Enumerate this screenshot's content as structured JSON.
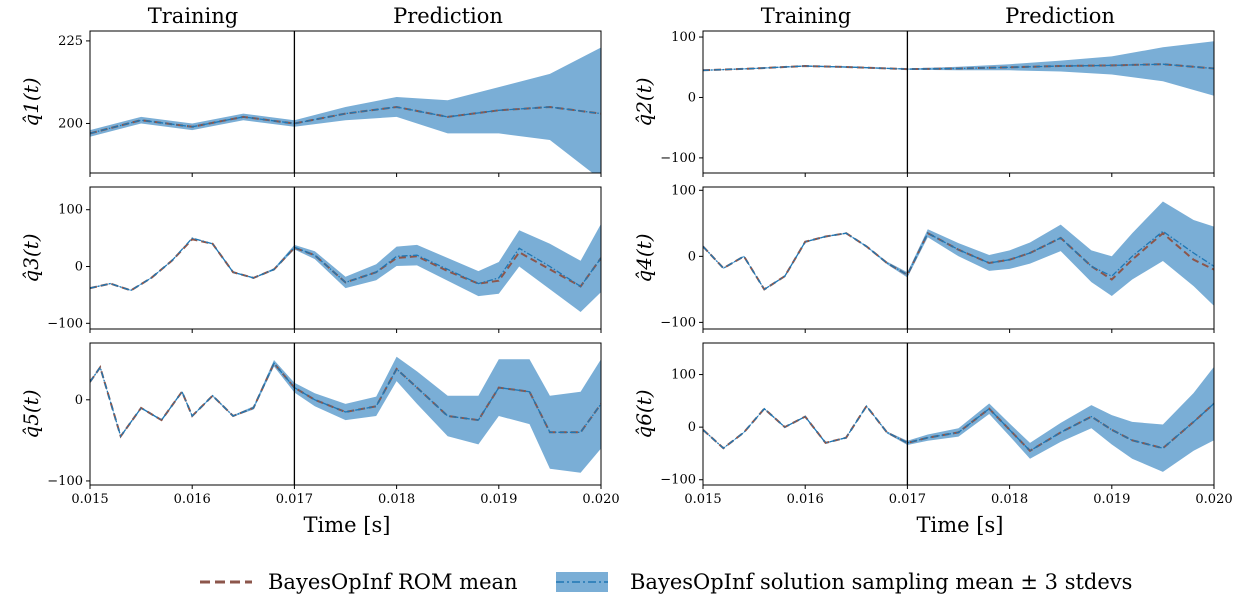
{
  "figure": {
    "column_headers": {
      "training": "Training",
      "prediction": "Prediction"
    },
    "xlabel": "Time [s]",
    "x_ticks": [
      "0.015",
      "0.016",
      "0.017",
      "0.018",
      "0.019",
      "0.020"
    ],
    "train_end": 0.017,
    "xlim": [
      0.015,
      0.02
    ]
  },
  "legend": {
    "position": "bottom-center",
    "rom_mean": "BayesOpInf ROM mean",
    "sampling": "BayesOpInf solution sampling mean ± 3 stdevs"
  },
  "colors": {
    "rom_mean": "#8c564b",
    "sampling_mean": "#1f77b4",
    "band": "#7aaed6",
    "divider": "#000000"
  },
  "chart_data": [
    {
      "type": "line",
      "ylabel": "q̂1(t)",
      "ylim": [
        185,
        228
      ],
      "yticks": [
        200,
        225
      ],
      "x": [
        0.015,
        0.0155,
        0.016,
        0.0165,
        0.017,
        0.0175,
        0.018,
        0.0185,
        0.019,
        0.0195,
        0.02
      ],
      "series": [
        {
          "name": "BayesOpInf ROM mean",
          "values": [
            197,
            201,
            199,
            202,
            200,
            203,
            205,
            202,
            204,
            205,
            203
          ]
        },
        {
          "name": "BayesOpInf solution sampling mean ± 3 stdevs",
          "values": [
            197,
            201,
            199,
            202,
            200,
            203,
            205,
            202,
            204,
            205,
            203
          ],
          "band": [
            1,
            1,
            1,
            1,
            1,
            2,
            3,
            5,
            7,
            10,
            20
          ]
        }
      ]
    },
    {
      "type": "line",
      "ylabel": "q̂2(t)",
      "ylim": [
        -125,
        110
      ],
      "yticks": [
        -100,
        0,
        100
      ],
      "x": [
        0.015,
        0.0155,
        0.016,
        0.0165,
        0.017,
        0.0175,
        0.018,
        0.0185,
        0.019,
        0.0195,
        0.02
      ],
      "series": [
        {
          "name": "BayesOpInf ROM mean",
          "values": [
            45,
            48,
            52,
            50,
            47,
            48,
            50,
            52,
            53,
            55,
            48
          ]
        },
        {
          "name": "BayesOpInf solution sampling mean ± 3 stdevs",
          "values": [
            45,
            48,
            52,
            50,
            47,
            48,
            50,
            52,
            53,
            55,
            48
          ],
          "band": [
            1,
            1,
            1,
            1,
            1,
            3,
            5,
            9,
            15,
            28,
            45
          ]
        }
      ]
    },
    {
      "type": "line",
      "ylabel": "q̂3(t)",
      "ylim": [
        -110,
        140
      ],
      "yticks": [
        -100,
        0,
        100
      ],
      "x": [
        0.015,
        0.0152,
        0.0154,
        0.0156,
        0.0158,
        0.016,
        0.0162,
        0.0164,
        0.0166,
        0.0168,
        0.017,
        0.0172,
        0.0175,
        0.0178,
        0.018,
        0.0182,
        0.0185,
        0.0188,
        0.019,
        0.0192,
        0.0195,
        0.0198,
        0.02
      ],
      "series": [
        {
          "name": "BayesOpInf ROM mean",
          "values": [
            -38,
            -30,
            -42,
            -20,
            10,
            48,
            40,
            -10,
            -20,
            -5,
            33,
            20,
            -28,
            -10,
            15,
            18,
            -8,
            -30,
            -25,
            25,
            -5,
            -35,
            15
          ]
        },
        {
          "name": "BayesOpInf solution sampling mean ± 3 stdevs",
          "values": [
            -38,
            -30,
            -42,
            -20,
            10,
            50,
            40,
            -10,
            -20,
            -5,
            34,
            20,
            -28,
            -10,
            18,
            20,
            -5,
            -30,
            -20,
            32,
            0,
            -35,
            15
          ],
          "band": [
            1,
            1,
            1,
            1,
            1,
            1,
            1,
            1,
            1,
            2,
            4,
            7,
            10,
            14,
            17,
            18,
            20,
            22,
            28,
            32,
            40,
            45,
            60
          ]
        }
      ]
    },
    {
      "type": "line",
      "ylabel": "q̂4(t)",
      "ylim": [
        -110,
        105
      ],
      "yticks": [
        -100,
        0,
        100
      ],
      "x": [
        0.015,
        0.0152,
        0.0154,
        0.0156,
        0.0158,
        0.016,
        0.0162,
        0.0164,
        0.0166,
        0.0168,
        0.017,
        0.0172,
        0.0175,
        0.0178,
        0.018,
        0.0182,
        0.0185,
        0.0188,
        0.019,
        0.0192,
        0.0195,
        0.0198,
        0.02
      ],
      "series": [
        {
          "name": "BayesOpInf ROM mean",
          "values": [
            15,
            -18,
            0,
            -50,
            -30,
            22,
            30,
            35,
            15,
            -10,
            -28,
            35,
            10,
            -10,
            -5,
            5,
            28,
            -15,
            -35,
            -5,
            35,
            -5,
            -20
          ]
        },
        {
          "name": "BayesOpInf solution sampling mean ± 3 stdevs",
          "values": [
            15,
            -18,
            0,
            -50,
            -30,
            22,
            30,
            35,
            15,
            -10,
            -28,
            35,
            10,
            -10,
            -5,
            5,
            28,
            -15,
            -30,
            0,
            38,
            5,
            -15
          ],
          "band": [
            1,
            1,
            1,
            1,
            1,
            1,
            1,
            1,
            1,
            2,
            4,
            6,
            10,
            12,
            14,
            16,
            20,
            24,
            30,
            35,
            45,
            50,
            60
          ]
        }
      ]
    },
    {
      "type": "line",
      "ylabel": "q̂5(t)",
      "ylim": [
        -105,
        70
      ],
      "yticks": [
        -100,
        0
      ],
      "x": [
        0.015,
        0.0151,
        0.0153,
        0.0155,
        0.0157,
        0.0159,
        0.016,
        0.0162,
        0.0164,
        0.0166,
        0.0168,
        0.017,
        0.0172,
        0.0175,
        0.0178,
        0.018,
        0.0182,
        0.0185,
        0.0188,
        0.019,
        0.0193,
        0.0195,
        0.0198,
        0.02
      ],
      "series": [
        {
          "name": "BayesOpInf ROM mean",
          "values": [
            22,
            40,
            -45,
            -10,
            -25,
            10,
            -20,
            5,
            -20,
            -10,
            45,
            15,
            0,
            -15,
            -8,
            38,
            15,
            -20,
            -25,
            15,
            10,
            -40,
            -40,
            -5
          ]
        },
        {
          "name": "BayesOpInf solution sampling mean ± 3 stdevs",
          "values": [
            22,
            40,
            -45,
            -10,
            -25,
            10,
            -20,
            5,
            -20,
            -10,
            45,
            15,
            0,
            -15,
            -8,
            38,
            15,
            -20,
            -25,
            15,
            10,
            -40,
            -40,
            -5
          ],
          "band": [
            1,
            1,
            1,
            1,
            1,
            1,
            1,
            1,
            1,
            2,
            4,
            6,
            8,
            10,
            12,
            15,
            20,
            25,
            30,
            35,
            40,
            45,
            50,
            55
          ]
        }
      ]
    },
    {
      "type": "line",
      "ylabel": "q̂6(t)",
      "ylim": [
        -110,
        160
      ],
      "yticks": [
        -100,
        0,
        100
      ],
      "x": [
        0.015,
        0.0152,
        0.0154,
        0.0156,
        0.0158,
        0.016,
        0.0162,
        0.0164,
        0.0166,
        0.0168,
        0.017,
        0.0172,
        0.0175,
        0.0178,
        0.018,
        0.0182,
        0.0185,
        0.0188,
        0.019,
        0.0192,
        0.0195,
        0.0198,
        0.02
      ],
      "series": [
        {
          "name": "BayesOpInf ROM mean",
          "values": [
            -5,
            -40,
            -10,
            35,
            0,
            20,
            -30,
            -20,
            40,
            -10,
            -30,
            -20,
            -10,
            35,
            -5,
            -45,
            -10,
            20,
            -5,
            -25,
            -40,
            10,
            45
          ]
        },
        {
          "name": "BayesOpInf solution sampling mean ± 3 stdevs",
          "values": [
            -5,
            -40,
            -10,
            35,
            0,
            20,
            -30,
            -20,
            40,
            -10,
            -30,
            -20,
            -10,
            35,
            -5,
            -45,
            -10,
            20,
            -5,
            -25,
            -40,
            10,
            45
          ],
          "band": [
            1,
            1,
            1,
            1,
            1,
            1,
            1,
            1,
            1,
            2,
            4,
            6,
            8,
            10,
            12,
            15,
            18,
            22,
            28,
            35,
            45,
            55,
            70
          ]
        }
      ]
    }
  ]
}
